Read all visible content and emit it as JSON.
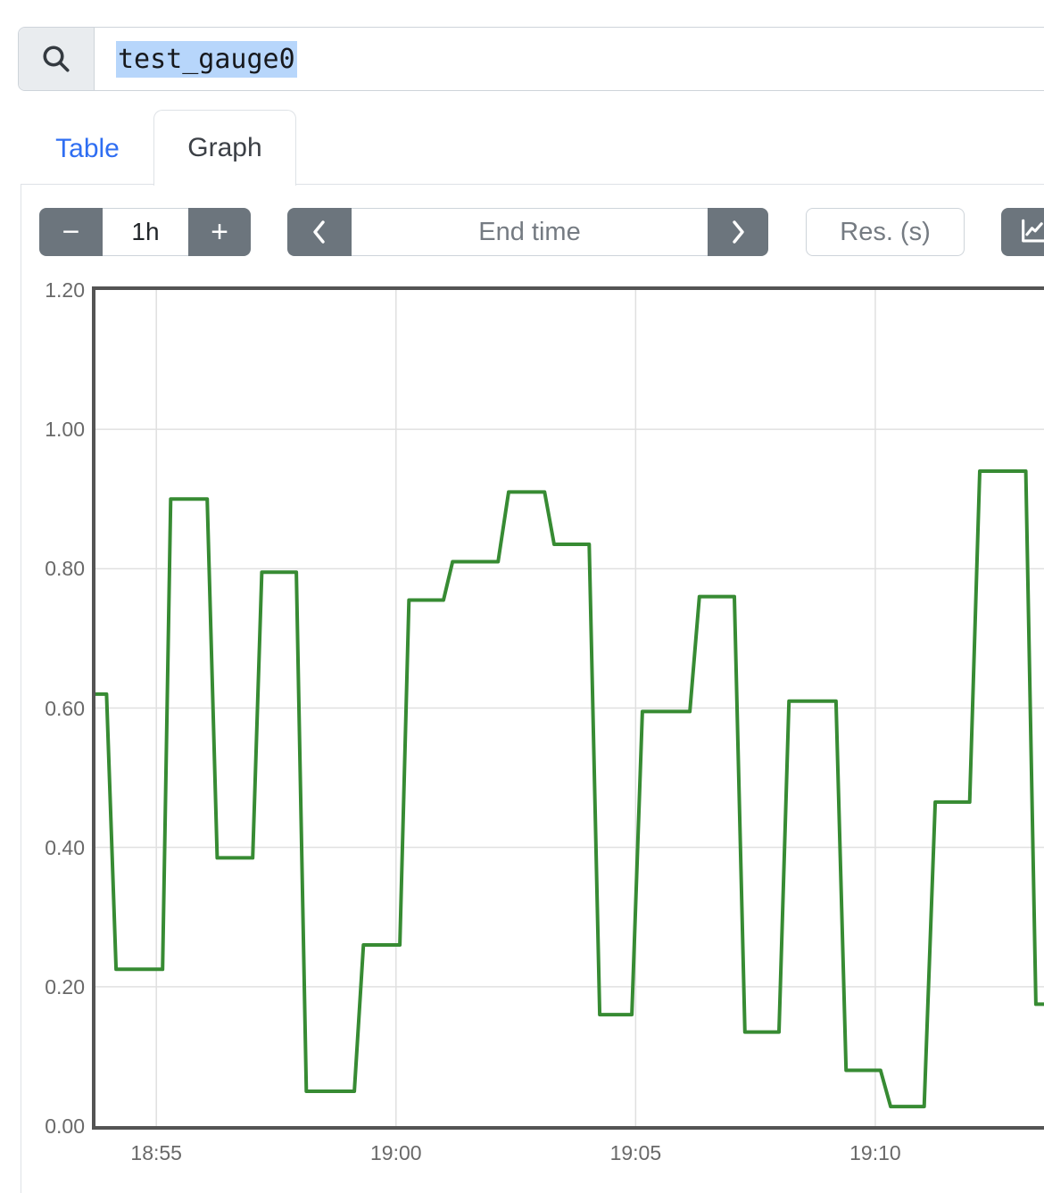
{
  "search": {
    "query": "test_gauge0"
  },
  "tabs": [
    {
      "label": "Table",
      "active": false
    },
    {
      "label": "Graph",
      "active": true
    }
  ],
  "toolbar": {
    "duration": {
      "decrease_label": "−",
      "value": "1h",
      "increase_label": "+"
    },
    "end_time": {
      "placeholder": "End time"
    },
    "resolution_placeholder": "Res. (s)"
  },
  "colors": {
    "link_blue": "#2f6ef2",
    "button_gray": "#6c757d",
    "series_green": "#378b33",
    "selection_blue": "#b7d6fb",
    "axis_border": "#545454",
    "gridline": "#e0e0e0",
    "tick_text": "#696969"
  },
  "chart_data": {
    "type": "line",
    "series_name": "test_gauge0",
    "line_style": "stepped",
    "grid": true,
    "ylim": [
      0,
      1.2
    ],
    "y_ticks": [
      {
        "label": "0.00",
        "value": 0.0
      },
      {
        "label": "0.20",
        "value": 0.2
      },
      {
        "label": "0.40",
        "value": 0.4
      },
      {
        "label": "0.60",
        "value": 0.6
      },
      {
        "label": "0.80",
        "value": 0.8
      },
      {
        "label": "1.00",
        "value": 1.0
      },
      {
        "label": "1.20",
        "value": 1.2
      }
    ],
    "time_base": "18:50",
    "x_window_minutes": [
      3.73,
      23.52
    ],
    "x_ticks": [
      {
        "label": "18:55",
        "min": 5
      },
      {
        "label": "19:00",
        "min": 10
      },
      {
        "label": "19:05",
        "min": 15
      },
      {
        "label": "19:10",
        "min": 20
      }
    ],
    "steps": [
      [
        3.73,
        3.96,
        0.62
      ],
      [
        4.16,
        5.13,
        0.225
      ],
      [
        5.3,
        6.06,
        0.9
      ],
      [
        6.27,
        7.01,
        0.385
      ],
      [
        7.2,
        7.92,
        0.795
      ],
      [
        8.13,
        9.13,
        0.05
      ],
      [
        9.32,
        10.08,
        0.26
      ],
      [
        10.27,
        10.99,
        0.755
      ],
      [
        11.18,
        12.13,
        0.81
      ],
      [
        12.35,
        13.1,
        0.91
      ],
      [
        13.3,
        14.03,
        0.835
      ],
      [
        14.25,
        14.92,
        0.16
      ],
      [
        15.14,
        16.13,
        0.595
      ],
      [
        16.33,
        17.06,
        0.76
      ],
      [
        17.28,
        17.99,
        0.135
      ],
      [
        18.2,
        19.18,
        0.61
      ],
      [
        19.39,
        20.11,
        0.08
      ],
      [
        20.32,
        21.02,
        0.028
      ],
      [
        21.25,
        21.97,
        0.465
      ],
      [
        22.18,
        23.14,
        0.94
      ],
      [
        23.35,
        23.8,
        0.175
      ]
    ]
  }
}
